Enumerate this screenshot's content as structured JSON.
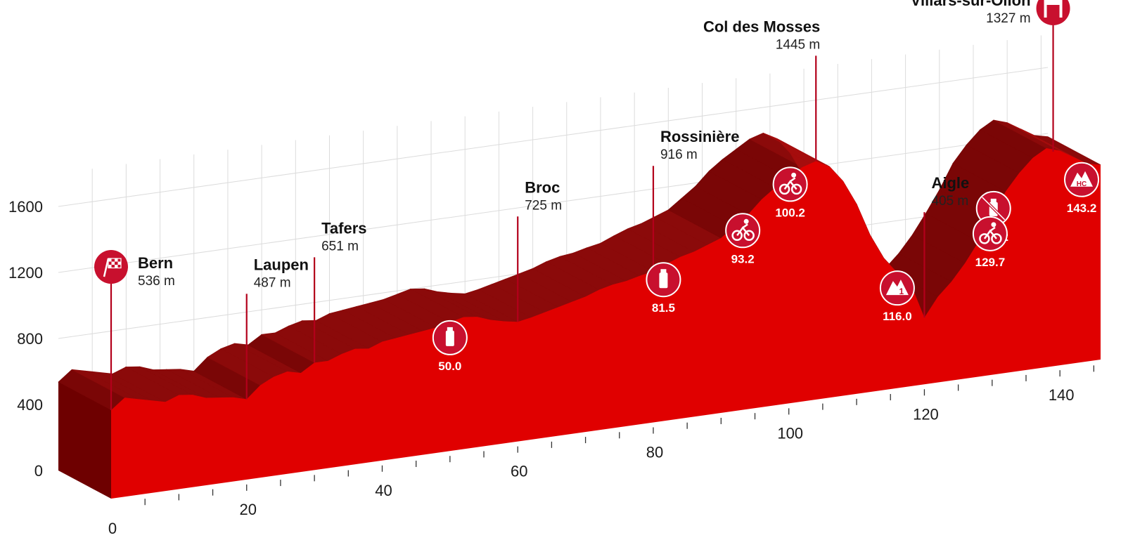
{
  "chart_data": {
    "type": "area",
    "title": "",
    "xlabel": "",
    "ylabel": "",
    "xlim": [
      0,
      146
    ],
    "ylim": [
      0,
      1800
    ],
    "x_ticks": [
      0,
      20,
      40,
      60,
      80,
      100,
      120,
      140
    ],
    "x_tick_labels": [
      "0",
      "20",
      "40",
      "60",
      "80",
      "100",
      "120",
      "140"
    ],
    "y_ticks": [
      0,
      400,
      800,
      1200,
      1600
    ],
    "y_tick_labels": [
      "0",
      "400",
      "800",
      "1200",
      "1600"
    ],
    "grid": true,
    "colors": {
      "top": "#8b0a0a",
      "front": "#e00000",
      "side": "#6e0000",
      "accent": "#c8102e"
    },
    "series": [
      {
        "x": [
          0,
          2,
          4,
          6,
          8,
          10,
          12,
          14,
          16,
          18,
          20,
          22,
          24,
          26,
          28,
          30,
          32,
          34,
          36,
          38,
          40,
          42,
          44,
          46,
          48,
          50,
          52,
          54,
          56,
          58,
          60,
          62,
          64,
          66,
          68,
          70,
          72,
          74,
          76,
          78,
          80,
          82,
          84,
          86,
          88,
          90,
          92,
          94,
          96,
          98,
          100,
          102,
          104,
          106,
          108,
          110,
          112,
          114,
          116,
          118,
          120,
          122,
          124,
          126,
          128,
          130,
          132,
          134,
          136,
          138,
          140,
          142,
          144,
          146
        ],
        "y": [
          536,
          600,
          580,
          560,
          540,
          570,
          560,
          530,
          520,
          510,
          487,
          560,
          600,
          620,
          600,
          651,
          650,
          680,
          700,
          690,
          720,
          730,
          740,
          750,
          760,
          780,
          800,
          790,
          760,
          740,
          725,
          740,
          760,
          780,
          800,
          820,
          850,
          870,
          880,
          900,
          916,
          950,
          980,
          1000,
          1030,
          1060,
          1120,
          1180,
          1260,
          1320,
          1370,
          1420,
          1445,
          1400,
          1300,
          1150,
          950,
          800,
          700,
          620,
          405,
          520,
          600,
          700,
          820,
          950,
          1100,
          1200,
          1280,
          1327,
          1300,
          1250,
          1200,
          1180
        ]
      }
    ],
    "locations": [
      {
        "name": "Bern",
        "alt": "536 m",
        "km": 0,
        "icon": "start-flag-icon"
      },
      {
        "name": "Laupen",
        "alt": "487 m",
        "km": 20
      },
      {
        "name": "Tafers",
        "alt": "651 m",
        "km": 30
      },
      {
        "name": "Broc",
        "alt": "725 m",
        "km": 60
      },
      {
        "name": "Rossinière",
        "alt": "916 m",
        "km": 80
      },
      {
        "name": "Col des Mosses",
        "alt": "1445 m",
        "km": 104
      },
      {
        "name": "Aigle",
        "alt": "405 m",
        "km": 120
      },
      {
        "name": "Villars-sur-Ollon",
        "alt": "1327 m",
        "km": 139,
        "icon": "finish-gate-icon"
      }
    ],
    "points_of_interest": [
      {
        "km_label": "50.0",
        "km": 50.0,
        "icon": "water-bottle-icon"
      },
      {
        "km_label": "81.5",
        "km": 81.5,
        "icon": "water-bottle-icon"
      },
      {
        "km_label": "93.2",
        "km": 93.2,
        "icon": "cyclist-icon"
      },
      {
        "km_label": "100.2",
        "km": 100.2,
        "icon": "cyclist-icon"
      },
      {
        "km_label": "116.0",
        "km": 116.0,
        "icon": "mountain-cat1-icon",
        "badge": "1"
      },
      {
        "km_label": "130.2",
        "km": 130.2,
        "icon": "no-bottle-icon"
      },
      {
        "km_label": "129.7",
        "km": 129.7,
        "icon": "cyclist-icon"
      },
      {
        "km_label": "143.2",
        "km": 143.2,
        "icon": "mountain-hc-icon",
        "badge": "HC"
      }
    ]
  }
}
